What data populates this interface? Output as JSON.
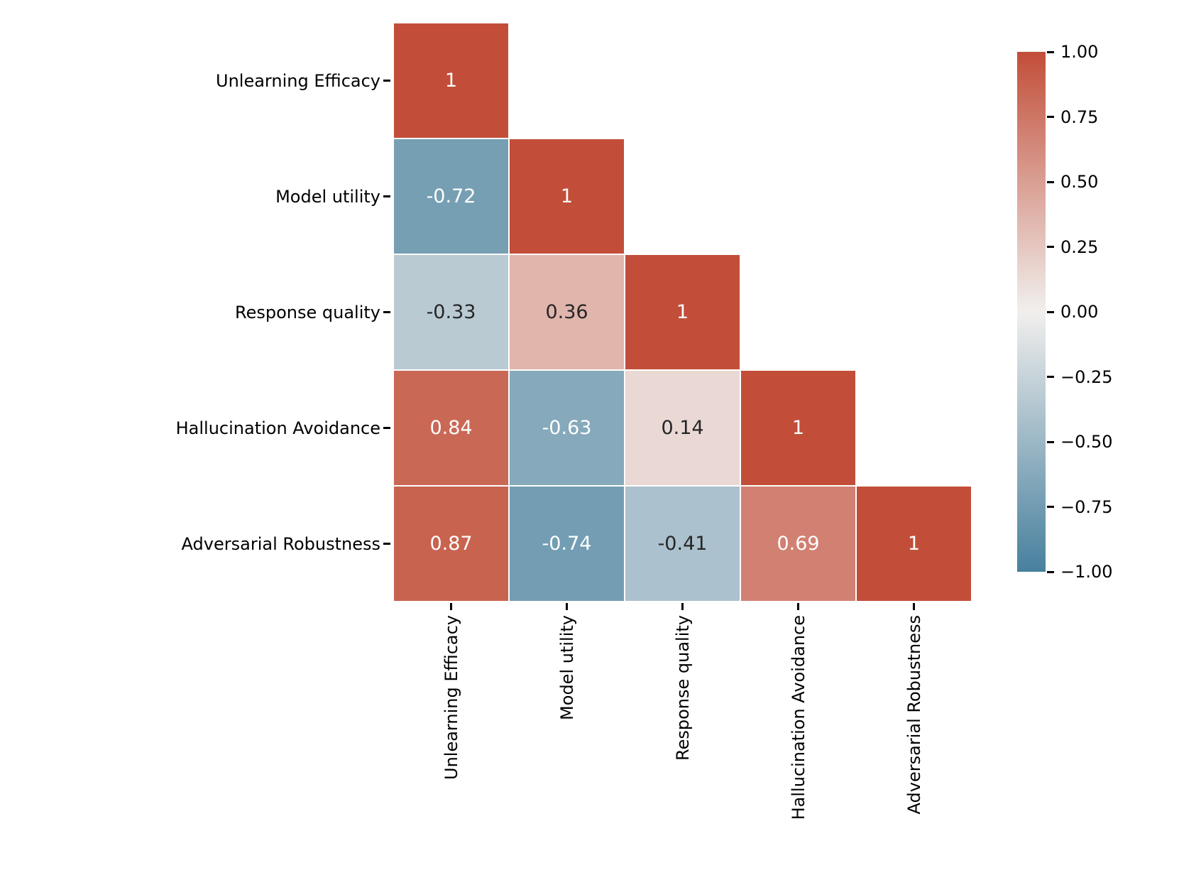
{
  "chart_data": {
    "type": "heatmap",
    "variant": "correlation-matrix-lower-triangle",
    "title": "",
    "xlabel": "",
    "ylabel": "",
    "categories": [
      "Unlearning Efficacy",
      "Model utility",
      "Response quality",
      "Hallucination Avoidance",
      "Adversarial Robustness"
    ],
    "matrix": [
      [
        1,
        null,
        null,
        null,
        null
      ],
      [
        -0.72,
        1,
        null,
        null,
        null
      ],
      [
        -0.33,
        0.36,
        1,
        null,
        null
      ],
      [
        0.84,
        -0.63,
        0.14,
        1,
        null
      ],
      [
        0.87,
        -0.74,
        -0.41,
        0.69,
        1
      ]
    ],
    "annotations": [
      [
        "1",
        "",
        "",
        "",
        ""
      ],
      [
        "-0.72",
        "1",
        "",
        "",
        ""
      ],
      [
        "-0.33",
        "0.36",
        "1",
        "",
        ""
      ],
      [
        "0.84",
        "-0.63",
        "0.14",
        "1",
        ""
      ],
      [
        "0.87",
        "-0.74",
        "-0.41",
        "0.69",
        "1"
      ]
    ],
    "value_domain": [
      -1,
      1
    ],
    "grid_on": false,
    "legend_position": "colorbar-right",
    "colormap": {
      "negative_end": "#47809e",
      "center": "#f1efed",
      "positive_end": "#c24e39"
    },
    "annotation_colors": {
      "on_dark": "#ffffff",
      "on_light": "#262626"
    },
    "cell_line_color": "#ffffff",
    "background_color": "#ffffff",
    "axis_tick_color": "#000000",
    "axis_label_color": "#000000",
    "colorbar": {
      "ticks": [
        {
          "value": 1,
          "label": "1.00"
        },
        {
          "value": 0.75,
          "label": "0.75"
        },
        {
          "value": 0.5,
          "label": "0.50"
        },
        {
          "value": 0.25,
          "label": "0.25"
        },
        {
          "value": 0,
          "label": "0.00"
        },
        {
          "value": -0.25,
          "label": "−0.25"
        },
        {
          "value": -0.5,
          "label": "−0.50"
        },
        {
          "value": -0.75,
          "label": "−0.75"
        },
        {
          "value": -1,
          "label": "−1.00"
        }
      ]
    }
  }
}
